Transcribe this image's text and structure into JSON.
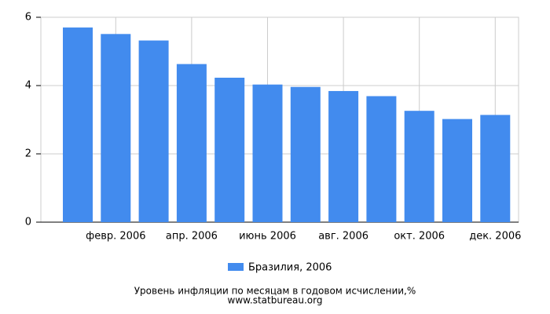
{
  "chart_data": {
    "type": "bar",
    "categories": [
      null,
      "февр. 2006",
      null,
      "апр. 2006",
      null,
      "июнь 2006",
      null,
      "авг. 2006",
      null,
      "окт. 2006",
      null,
      "дек. 2006"
    ],
    "series": [
      {
        "name": "Бразилия, 2006",
        "color": "#428bee",
        "values": [
          5.7,
          5.51,
          5.32,
          4.63,
          4.23,
          4.03,
          3.96,
          3.84,
          3.69,
          3.26,
          3.02,
          3.14
        ]
      }
    ],
    "ylim": [
      0,
      6
    ],
    "yticks": [
      0,
      2,
      4,
      6
    ],
    "grid": true,
    "title": "Уровень инфляции по месяцам в годовом исчислении,%",
    "subtitle": "www.statbureau.org"
  }
}
